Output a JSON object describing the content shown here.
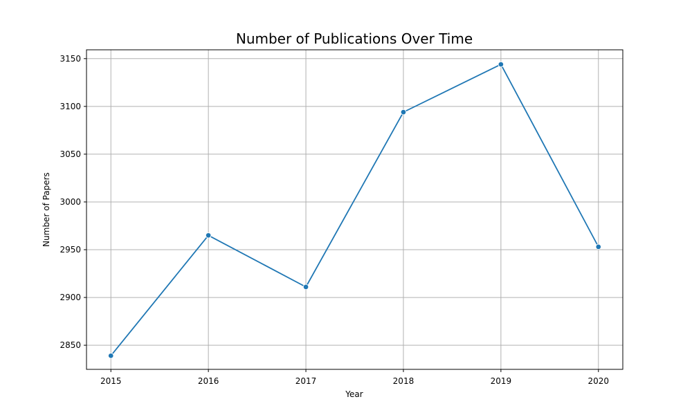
{
  "chart_data": {
    "type": "line",
    "title": "Number of Publications Over Time",
    "xlabel": "Year",
    "ylabel": "Number of Papers",
    "x": [
      2015,
      2016,
      2017,
      2018,
      2019,
      2020
    ],
    "series": [
      {
        "values": [
          2839,
          2965,
          2911,
          3094,
          3144,
          2953
        ],
        "color": "#1f77b4",
        "marker": "circle"
      }
    ],
    "xticks": [
      "2015",
      "2016",
      "2017",
      "2018",
      "2019",
      "2020"
    ],
    "yticks": [
      "2850",
      "2900",
      "2950",
      "3000",
      "3050",
      "3100",
      "3150"
    ],
    "xlim": [
      2014.75,
      2020.25
    ],
    "ylim": [
      2824.75,
      3159.25
    ],
    "grid": true,
    "legend": "none"
  }
}
